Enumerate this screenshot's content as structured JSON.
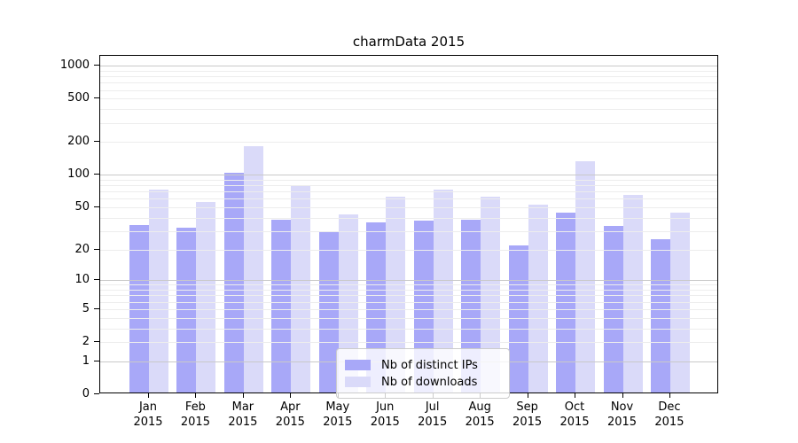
{
  "title": "charmData 2015",
  "colors": {
    "ips": "#a8a8f8",
    "downloads": "#dadaf9",
    "grid_major": "#c9c9c9",
    "grid_minor": "#ededed",
    "axis": "#000000"
  },
  "legend": {
    "items": [
      {
        "label": "Nb of distinct IPs",
        "series_key": "ips"
      },
      {
        "label": "Nb of downloads",
        "series_key": "downloads"
      }
    ]
  },
  "y_axis": {
    "tick_labels": [
      "1000",
      "500",
      "200",
      "100",
      "50",
      "20",
      "10",
      "5",
      "2",
      "1",
      "0"
    ]
  },
  "x_axis": {
    "months": [
      "Jan",
      "Feb",
      "Mar",
      "Apr",
      "May",
      "Jun",
      "Jul",
      "Aug",
      "Sep",
      "Oct",
      "Nov",
      "Dec"
    ],
    "year": "2015"
  },
  "chart_data": {
    "type": "bar",
    "title": "charmData 2015",
    "categories": [
      "Jan 2015",
      "Feb 2015",
      "Mar 2015",
      "Apr 2015",
      "May 2015",
      "Jun 2015",
      "Jul 2015",
      "Aug 2015",
      "Sep 2015",
      "Oct 2015",
      "Nov 2015",
      "Dec 2015"
    ],
    "series": [
      {
        "name": "Nb of distinct IPs",
        "color": "#a8a8f8",
        "values": [
          33,
          31,
          100,
          37,
          29,
          35,
          36,
          37,
          21,
          43,
          32,
          24
        ]
      },
      {
        "name": "Nb of downloads",
        "color": "#dadaf9",
        "values": [
          71,
          54,
          177,
          78,
          41,
          61,
          70,
          61,
          51,
          128,
          63,
          43
        ]
      }
    ],
    "xlabel": "",
    "ylabel": "",
    "y_scale": "log10(value+1)",
    "y_ticks": [
      0,
      1,
      2,
      5,
      10,
      20,
      50,
      100,
      200,
      500,
      1000
    ],
    "ylim": [
      0,
      1236
    ],
    "grid": true,
    "legend_position": "lower center (inside axes)"
  }
}
